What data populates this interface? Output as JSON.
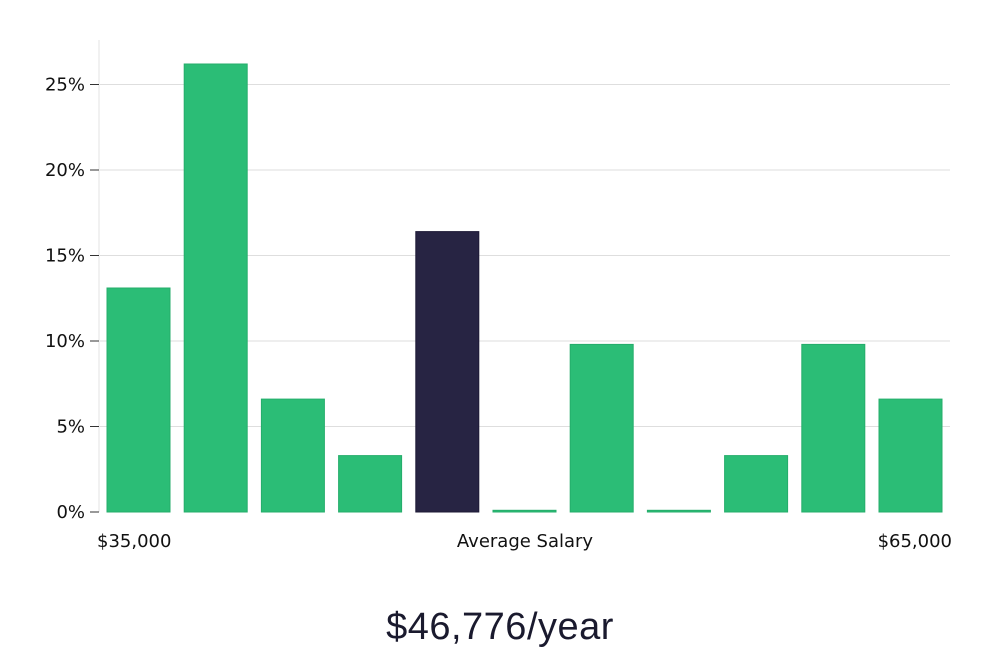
{
  "chart_data": {
    "type": "bar",
    "title": "",
    "xlabel": "Average Salary",
    "ylabel": "",
    "x_min_label": "$35,000",
    "x_max_label": "$65,000",
    "ylim": [
      0,
      27.5
    ],
    "yticks": [
      0,
      5,
      10,
      15,
      20,
      25
    ],
    "ytick_labels": [
      "0%",
      "5%",
      "10%",
      "15%",
      "20%",
      "25%"
    ],
    "values": [
      13.1,
      26.2,
      6.6,
      3.3,
      16.4,
      0.1,
      9.8,
      0.1,
      3.3,
      9.8,
      6.6
    ],
    "highlight_index": 4,
    "bar_color": "#2bbd76",
    "highlight_color": "#272443",
    "grid": true
  },
  "salary_text": "$46,776/year"
}
